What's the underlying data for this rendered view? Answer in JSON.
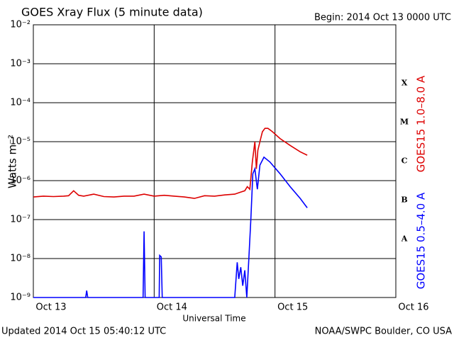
{
  "chart_data": {
    "type": "line",
    "title": "GOES Xray Flux (5 minute data)",
    "subtitle": "Begin:  2014 Oct 13 0000 UTC",
    "x_label": "Universal Time",
    "y_label": "Watts m⁻²",
    "footer_left": "Updated 2014 Oct 15 05:40:12 UTC",
    "footer_right": "NOAA/SWPC Boulder, CO USA",
    "log_y": true,
    "grid": true,
    "xlim": [
      0,
      72
    ],
    "xticks": [
      {
        "value": 0,
        "label": "Oct 13"
      },
      {
        "value": 24,
        "label": "Oct 14"
      },
      {
        "value": 48,
        "label": "Oct 15"
      },
      {
        "value": 72,
        "label": "Oct 16"
      }
    ],
    "ylim": [
      1e-09,
      0.01
    ],
    "yticks": [
      {
        "value": 0.01,
        "label": "10⁻²"
      },
      {
        "value": 0.001,
        "label": "10⁻³"
      },
      {
        "value": 0.0001,
        "label": "10⁻⁴"
      },
      {
        "value": 1e-05,
        "label": "10⁻⁵"
      },
      {
        "value": 1e-06,
        "label": "10⁻⁶"
      },
      {
        "value": 1e-07,
        "label": "10⁻⁷"
      },
      {
        "value": 1e-08,
        "label": "10⁻⁸"
      },
      {
        "value": 1e-09,
        "label": "10⁻⁹"
      }
    ],
    "class_labels": [
      "X",
      "M",
      "C",
      "B",
      "A"
    ],
    "series": [
      {
        "name": "GOES15 1.0–8.0 A",
        "color": "#dd0000",
        "x": [
          0,
          2,
          4,
          6,
          7,
          8,
          9,
          10,
          12,
          14,
          16,
          18,
          20,
          22,
          24,
          26,
          28,
          30,
          32,
          34,
          36,
          38,
          40,
          41,
          42,
          42.5,
          43,
          43.5,
          44,
          44.3,
          44.6,
          45,
          45.5,
          46,
          46.6,
          47.5,
          49,
          51,
          53,
          54.4
        ],
        "values": [
          3.8e-07,
          4e-07,
          3.9e-07,
          4e-07,
          4.1e-07,
          5.5e-07,
          4.2e-07,
          4e-07,
          4.5e-07,
          3.9e-07,
          3.8e-07,
          4e-07,
          4e-07,
          4.5e-07,
          4e-07,
          4.2e-07,
          4e-07,
          3.8e-07,
          3.5e-07,
          4.1e-07,
          4e-07,
          4.3e-07,
          4.5e-07,
          5e-07,
          5.5e-07,
          7e-07,
          6e-07,
          3e-06,
          1e-05,
          2e-06,
          6e-06,
          1e-05,
          1.8e-05,
          2.2e-05,
          2.2e-05,
          1.8e-05,
          1.2e-05,
          8e-06,
          5.5e-06,
          4.5e-06
        ]
      },
      {
        "name": "GOES15 0.5–4.0 A",
        "color": "#0000ff",
        "x": [
          0,
          10.4,
          10.6,
          10.8,
          21.8,
          22,
          22.2,
          25,
          25.1,
          25.4,
          25.6,
          40,
          40.5,
          40.8,
          41.2,
          41.6,
          42,
          42.4,
          42.8,
          43.2,
          43.6,
          44,
          44.5,
          45,
          45.8,
          47,
          49,
          51,
          53,
          54.4
        ],
        "values": [
          1e-09,
          1e-09,
          1.5e-09,
          1e-09,
          1e-09,
          5e-08,
          1e-09,
          1e-09,
          1.2e-08,
          1.1e-08,
          1e-09,
          1e-09,
          8e-09,
          3e-09,
          6e-09,
          2e-09,
          5e-09,
          1e-09,
          1e-08,
          1e-07,
          1.5e-06,
          2e-06,
          6e-07,
          2.5e-06,
          4e-06,
          3e-06,
          1.5e-06,
          7e-07,
          3.5e-07,
          2e-07
        ]
      }
    ]
  }
}
